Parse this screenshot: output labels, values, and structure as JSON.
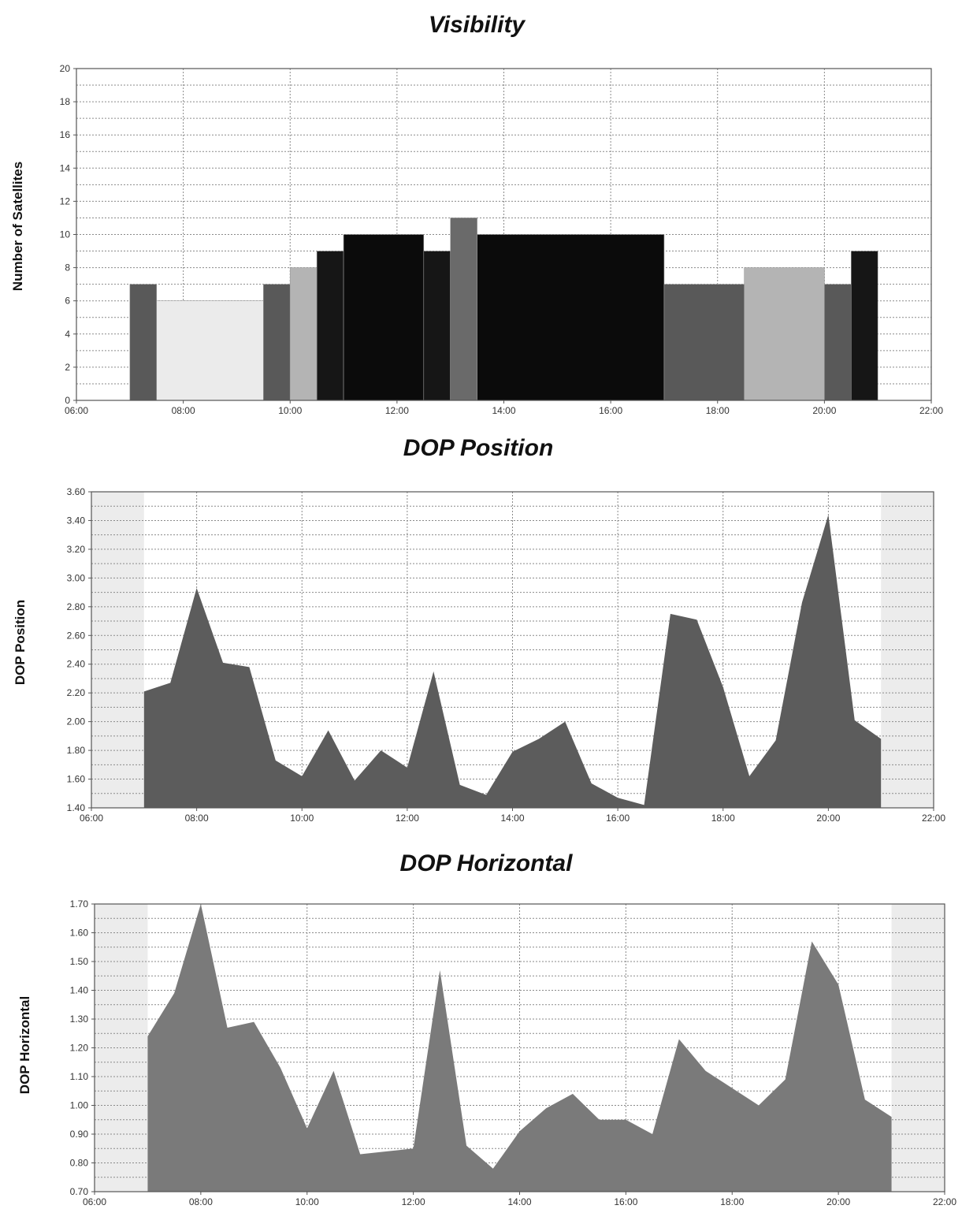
{
  "chart_data": [
    {
      "type": "bar",
      "title": "Visibility",
      "xlabel": "",
      "ylabel": "Number of Satellites",
      "xlim": [
        "06:00",
        "22:00"
      ],
      "ylim": [
        0,
        20
      ],
      "grid": true,
      "xticks": [
        "06:00",
        "08:00",
        "10:00",
        "12:00",
        "14:00",
        "16:00",
        "18:00",
        "20:00",
        "22:00"
      ],
      "yticks": [
        "0",
        "2",
        "4",
        "6",
        "8",
        "10",
        "12",
        "14",
        "16",
        "18",
        "20"
      ],
      "bars": [
        {
          "start": "07:00",
          "end": "07:30",
          "value": 7,
          "color": "#595959"
        },
        {
          "start": "07:30",
          "end": "09:30",
          "value": 6,
          "color": "#ebebeb"
        },
        {
          "start": "09:30",
          "end": "10:00",
          "value": 7,
          "color": "#595959"
        },
        {
          "start": "10:00",
          "end": "10:30",
          "value": 8,
          "color": "#b4b4b4"
        },
        {
          "start": "10:30",
          "end": "11:00",
          "value": 9,
          "color": "#161616"
        },
        {
          "start": "11:00",
          "end": "12:30",
          "value": 10,
          "color": "#0b0b0b"
        },
        {
          "start": "12:30",
          "end": "13:00",
          "value": 9,
          "color": "#161616"
        },
        {
          "start": "13:00",
          "end": "13:30",
          "value": 11,
          "color": "#6a6a6a"
        },
        {
          "start": "13:30",
          "end": "17:00",
          "value": 10,
          "color": "#0b0b0b"
        },
        {
          "start": "17:00",
          "end": "18:30",
          "value": 7,
          "color": "#595959"
        },
        {
          "start": "18:30",
          "end": "20:00",
          "value": 8,
          "color": "#b4b4b4"
        },
        {
          "start": "20:00",
          "end": "20:30",
          "value": 7,
          "color": "#595959"
        },
        {
          "start": "20:30",
          "end": "21:00",
          "value": 9,
          "color": "#161616"
        }
      ]
    },
    {
      "type": "area",
      "title": "DOP Position",
      "xlabel": "",
      "ylabel": "DOP Position",
      "xlim": [
        "06:00",
        "22:00"
      ],
      "ylim": [
        1.4,
        3.6
      ],
      "grid": true,
      "shaded_ranges": [
        [
          "06:00",
          "07:00"
        ],
        [
          "21:00",
          "22:00"
        ]
      ],
      "xticks": [
        "06:00",
        "08:00",
        "10:00",
        "12:00",
        "14:00",
        "16:00",
        "18:00",
        "20:00",
        "22:00"
      ],
      "yticks": [
        "1.40",
        "1.60",
        "1.80",
        "2.00",
        "2.20",
        "2.40",
        "2.60",
        "2.80",
        "3.00",
        "3.20",
        "3.40",
        "3.60"
      ],
      "x": [
        "07:00",
        "07:30",
        "08:00",
        "08:30",
        "09:00",
        "09:30",
        "10:00",
        "10:30",
        "11:00",
        "11:30",
        "12:00",
        "12:30",
        "13:00",
        "13:30",
        "14:00",
        "14:30",
        "15:00",
        "15:30",
        "16:00",
        "16:30",
        "17:00",
        "17:30",
        "18:00",
        "18:30",
        "19:00",
        "19:30",
        "20:00",
        "20:30",
        "21:00"
      ],
      "values": [
        2.21,
        2.27,
        2.93,
        2.41,
        2.38,
        1.73,
        1.62,
        1.94,
        1.59,
        1.8,
        1.68,
        2.35,
        1.56,
        1.49,
        1.79,
        1.88,
        2.0,
        1.57,
        1.47,
        1.42,
        2.75,
        2.71,
        2.24,
        1.62,
        1.87,
        2.83,
        3.44,
        2.01,
        1.88
      ],
      "color": "#5c5c5c"
    },
    {
      "type": "area",
      "title": "DOP Horizontal",
      "xlabel": "",
      "ylabel": "DOP Horizontal",
      "xlim": [
        "06:00",
        "22:00"
      ],
      "ylim": [
        0.7,
        1.7
      ],
      "grid": true,
      "shaded_ranges": [
        [
          "06:00",
          "07:00"
        ],
        [
          "21:00",
          "22:00"
        ]
      ],
      "xticks": [
        "06:00",
        "08:00",
        "10:00",
        "12:00",
        "14:00",
        "16:00",
        "18:00",
        "20:00",
        "22:00"
      ],
      "yticks": [
        "0.70",
        "0.80",
        "0.90",
        "1.00",
        "1.10",
        "1.20",
        "1.30",
        "1.40",
        "1.50",
        "1.60",
        "1.70"
      ],
      "x": [
        "07:00",
        "07:30",
        "08:00",
        "08:30",
        "09:00",
        "09:30",
        "10:00",
        "10:30",
        "11:00",
        "11:30",
        "12:00",
        "12:30",
        "13:00",
        "13:30",
        "14:00",
        "14:30",
        "15:00",
        "15:30",
        "16:00",
        "16:30",
        "17:00",
        "17:30",
        "18:00",
        "18:30",
        "19:00",
        "19:30",
        "20:00",
        "20:30",
        "21:00"
      ],
      "values": [
        1.24,
        1.39,
        1.7,
        1.27,
        1.29,
        1.13,
        0.92,
        1.12,
        0.83,
        0.84,
        0.85,
        1.47,
        0.86,
        0.78,
        0.91,
        0.99,
        1.04,
        0.95,
        0.95,
        0.9,
        1.23,
        1.12,
        1.06,
        1.0,
        1.09,
        1.57,
        1.42,
        1.02,
        0.96
      ],
      "color": "#7a7a7a"
    }
  ]
}
